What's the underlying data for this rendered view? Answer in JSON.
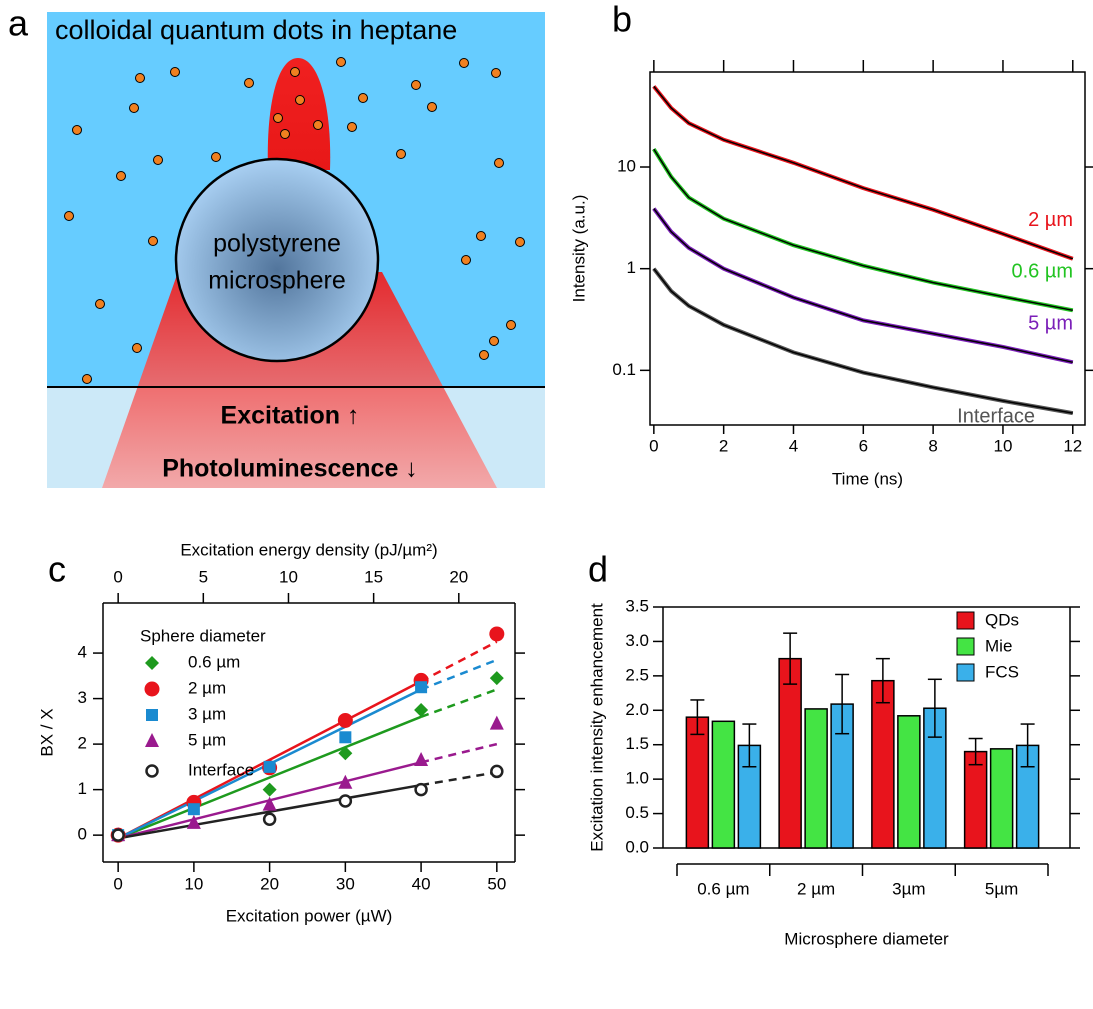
{
  "diagram": {
    "panel_label": "a",
    "title": "colloidal quantum dots in heptane",
    "sphere_label": [
      "polystyrene",
      "microsphere"
    ],
    "excitation": "Excitation ↑",
    "photoluminescence": "Photoluminescence ↓"
  },
  "chart_data": [
    {
      "type": "line",
      "panel_label": "b",
      "x_label": "Time (ns)",
      "y_label": "Intensity (a.u.)",
      "log_y": true,
      "x": [
        0,
        0.5,
        1,
        2,
        4,
        6,
        8,
        10,
        12
      ],
      "series": [
        {
          "name": "2 µm",
          "color": "#e8141c",
          "values": [
            62,
            38,
            27,
            18.5,
            11,
            6.2,
            3.8,
            2.2,
            1.25
          ]
        },
        {
          "name": "0.6 µm",
          "color": "#22c422",
          "values": [
            15,
            8,
            5,
            3.1,
            1.7,
            1.07,
            0.73,
            0.53,
            0.39
          ]
        },
        {
          "name": "5 µm",
          "color": "#7b1fb8",
          "values": [
            3.9,
            2.3,
            1.6,
            1.0,
            0.52,
            0.31,
            0.23,
            0.17,
            0.12
          ]
        },
        {
          "name": "Interface",
          "color": "#555555",
          "values": [
            1.0,
            0.6,
            0.43,
            0.28,
            0.15,
            0.095,
            0.068,
            0.05,
            0.038
          ]
        }
      ],
      "xlim": [
        -0.11,
        12.35
      ],
      "xticks": [
        0,
        2,
        4,
        6,
        8,
        10,
        12
      ],
      "ylim": [
        0.029,
        86
      ],
      "yticks": [
        0.1,
        1,
        10
      ]
    },
    {
      "type": "scatter",
      "panel_label": "c",
      "x_label": "Excitation power (µW)",
      "x2_label": "Excitation energy density (pJ/µm²)",
      "y_label": "BX / X",
      "legend_title": "Sphere diameter",
      "x": [
        0,
        10,
        20,
        30,
        40,
        50
      ],
      "fit_x": [
        0,
        40,
        50
      ],
      "series": [
        {
          "name": "0.6 µm",
          "color": "#1e9a1e",
          "marker": "diamond",
          "values": [
            0,
            0.65,
            1.0,
            1.8,
            2.75,
            3.45
          ],
          "fit": [
            -0.07,
            2.6,
            3.2
          ]
        },
        {
          "name": "2 µm",
          "color": "#e8141c",
          "marker": "circle",
          "values": [
            0,
            0.72,
            1.48,
            2.52,
            3.4,
            4.42
          ],
          "fit": [
            -0.07,
            3.38,
            4.25
          ]
        },
        {
          "name": "3 µm",
          "color": "#1a8ad0",
          "marker": "square",
          "values": [
            0,
            0.57,
            1.5,
            2.15,
            3.25,
            null
          ],
          "fit": [
            -0.07,
            3.2,
            3.85
          ]
        },
        {
          "name": "5 µm",
          "color": "#9a1a8e",
          "marker": "triangle",
          "values": [
            0,
            0.27,
            0.67,
            1.15,
            1.65,
            2.45
          ],
          "fit": [
            -0.07,
            1.6,
            2.0
          ]
        },
        {
          "name": "Interface",
          "color": "#222222",
          "marker": "open-circle",
          "values": [
            0,
            null,
            0.35,
            0.75,
            1.0,
            1.4
          ],
          "fit": [
            -0.07,
            1.1,
            1.38
          ]
        }
      ],
      "xlim": [
        -2,
        52.4
      ],
      "xticks": [
        0,
        10,
        20,
        30,
        40,
        50
      ],
      "x2lim": [
        -0.89,
        23.3
      ],
      "x2ticks": [
        0,
        5,
        10,
        15,
        20
      ],
      "ylim": [
        -0.59,
        5.1
      ],
      "yticks": [
        0,
        1,
        2,
        3,
        4
      ]
    },
    {
      "type": "bar",
      "panel_label": "d",
      "x_label": "Microsphere diameter",
      "y_label": "Excitation intensity enhancement",
      "legend": "top-right",
      "categories": [
        "0.6 µm",
        "2 µm",
        "3µm",
        "5µm"
      ],
      "series": [
        {
          "name": "QDs",
          "color": "#e8141c",
          "values": [
            1.9,
            2.75,
            2.43,
            1.4
          ],
          "errors": [
            0.25,
            0.37,
            0.32,
            0.19
          ]
        },
        {
          "name": "Mie",
          "color": "#44e444",
          "values": [
            1.84,
            2.02,
            1.92,
            1.44
          ]
        },
        {
          "name": "FCS",
          "color": "#3ab0ea",
          "values": [
            1.49,
            2.09,
            2.03,
            1.49
          ],
          "errors": [
            0.31,
            0.43,
            0.42,
            0.31
          ]
        }
      ],
      "ylim": [
        0,
        3.5
      ],
      "yticks": [
        {
          "value": 0,
          "label": "0.0"
        },
        0.5,
        {
          "value": 1,
          "label": "1.0"
        },
        1.5,
        {
          "value": 2,
          "label": "2.0"
        },
        2.5,
        {
          "value": 3,
          "label": "3.0"
        },
        3.5
      ]
    }
  ]
}
